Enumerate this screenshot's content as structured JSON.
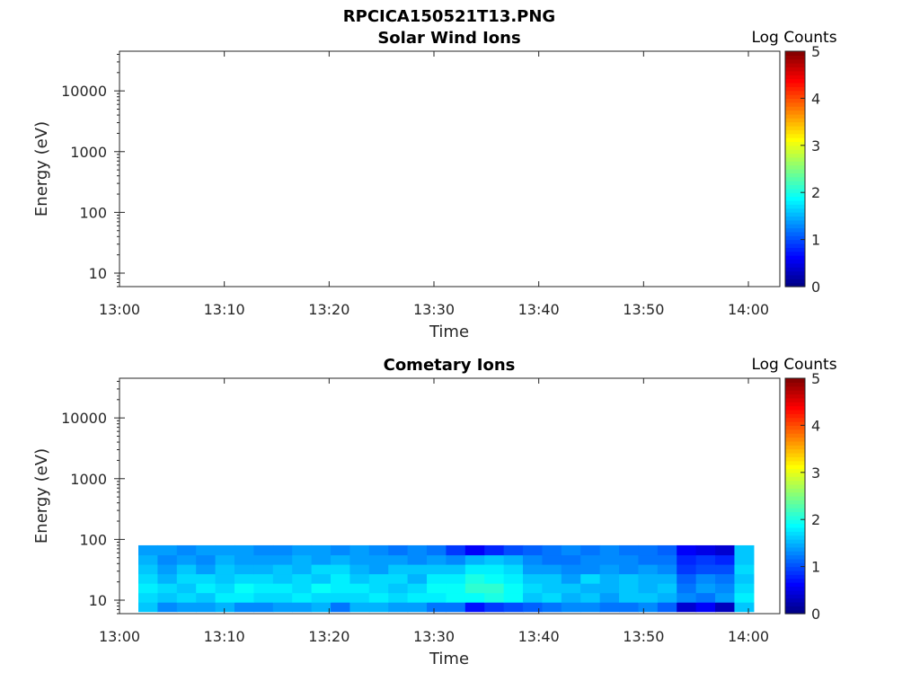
{
  "figure": {
    "title": "RPCICA150521T13.PNG"
  },
  "colors": {
    "axis": "#262626",
    "colormap": "jet"
  },
  "chart_data": [
    {
      "type": "heatmap",
      "title": "Solar Wind Ions",
      "xlabel": "Time",
      "ylabel": "Energy (eV)",
      "x_ticks": [
        "13:00",
        "13:10",
        "13:20",
        "13:30",
        "13:40",
        "13:50",
        "14:00"
      ],
      "x_range_minutes": [
        0,
        63
      ],
      "y_scale": "log",
      "y_ticks": [
        "10",
        "100",
        "1000",
        "10000"
      ],
      "y_range": [
        6,
        45000
      ],
      "colorbar": {
        "label": "Log Counts",
        "range": [
          0,
          5
        ],
        "ticks": [
          "0",
          "1",
          "2",
          "3",
          "4",
          "5"
        ]
      },
      "data": "empty"
    },
    {
      "type": "heatmap",
      "title": "Cometary Ions",
      "xlabel": "Time",
      "ylabel": "Energy (eV)",
      "x_ticks": [
        "13:00",
        "13:10",
        "13:20",
        "13:30",
        "13:40",
        "13:50",
        "14:00"
      ],
      "x_range_minutes": [
        0,
        63
      ],
      "y_scale": "log",
      "y_ticks": [
        "10",
        "100",
        "1000",
        "10000"
      ],
      "y_range": [
        6,
        45000
      ],
      "colorbar": {
        "label": "Log Counts",
        "range": [
          0,
          5
        ],
        "ticks": [
          "0",
          "1",
          "2",
          "3",
          "4",
          "5"
        ]
      },
      "data_region": {
        "time_start_minutes": 1.8,
        "time_end_minutes": 60.5,
        "energy_min_eV": 6.5,
        "energy_max_eV": 80
      },
      "rows_energy_eV": [
        7,
        9,
        13,
        19,
        28,
        42,
        62
      ],
      "time_columns": 32,
      "values": [
        [
          1.6,
          1.3,
          1.4,
          1.4,
          1.5,
          1.3,
          1.3,
          1.4,
          1.4,
          1.5,
          1.2,
          1.5,
          1.5,
          1.4,
          1.4,
          1.2,
          1.2,
          0.7,
          0.9,
          1.0,
          1.1,
          1.2,
          1.3,
          1.3,
          1.2,
          1.2,
          1.3,
          1.1,
          0.4,
          0.6,
          0.3,
          1.6
        ],
        [
          1.7,
          1.6,
          1.7,
          1.6,
          1.8,
          1.8,
          1.7,
          1.7,
          1.8,
          1.7,
          1.7,
          1.7,
          1.8,
          1.7,
          1.8,
          1.8,
          1.9,
          1.9,
          2.0,
          1.9,
          1.6,
          1.7,
          1.5,
          1.6,
          1.4,
          1.6,
          1.6,
          1.5,
          1.3,
          1.2,
          1.4,
          1.8
        ],
        [
          1.8,
          1.7,
          1.6,
          1.8,
          1.7,
          1.9,
          1.8,
          1.8,
          1.7,
          1.9,
          1.8,
          1.8,
          1.7,
          1.6,
          1.7,
          1.9,
          1.9,
          2.1,
          2.1,
          1.9,
          1.7,
          1.6,
          1.6,
          1.5,
          1.5,
          1.6,
          1.5,
          1.6,
          1.2,
          1.4,
          1.3,
          1.7
        ],
        [
          1.7,
          1.5,
          1.7,
          1.7,
          1.6,
          1.7,
          1.7,
          1.6,
          1.7,
          1.6,
          1.8,
          1.6,
          1.7,
          1.7,
          1.5,
          1.8,
          1.8,
          2.0,
          1.9,
          1.8,
          1.6,
          1.6,
          1.4,
          1.7,
          1.5,
          1.6,
          1.5,
          1.5,
          1.1,
          1.3,
          1.2,
          1.6
        ],
        [
          1.6,
          1.4,
          1.6,
          1.4,
          1.6,
          1.5,
          1.5,
          1.6,
          1.5,
          1.7,
          1.7,
          1.5,
          1.4,
          1.6,
          1.6,
          1.6,
          1.6,
          1.8,
          1.8,
          1.7,
          1.4,
          1.4,
          1.3,
          1.3,
          1.4,
          1.3,
          1.4,
          1.3,
          0.9,
          1.0,
          1.0,
          1.7
        ],
        [
          1.5,
          1.3,
          1.4,
          1.3,
          1.5,
          1.4,
          1.4,
          1.4,
          1.5,
          1.4,
          1.5,
          1.4,
          1.4,
          1.4,
          1.3,
          1.4,
          1.3,
          1.5,
          1.6,
          1.5,
          1.3,
          1.2,
          1.2,
          1.3,
          1.3,
          1.3,
          1.2,
          1.2,
          0.8,
          0.9,
          0.8,
          1.6
        ],
        [
          1.4,
          1.4,
          1.3,
          1.4,
          1.4,
          1.4,
          1.3,
          1.3,
          1.4,
          1.4,
          1.3,
          1.4,
          1.3,
          1.2,
          1.3,
          1.2,
          0.9,
          0.6,
          0.8,
          1.0,
          1.1,
          1.2,
          1.3,
          1.2,
          1.3,
          1.2,
          1.2,
          1.1,
          0.6,
          0.5,
          0.4,
          1.6
        ]
      ]
    }
  ]
}
